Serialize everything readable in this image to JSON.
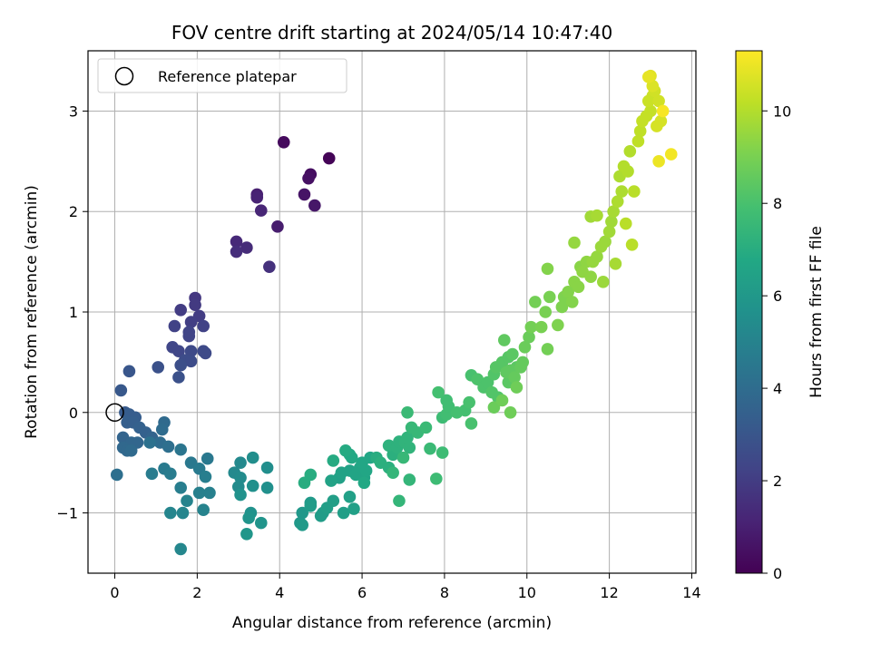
{
  "chart_data": {
    "type": "scatter",
    "title": "FOV centre drift starting at 2024/05/14 10:47:40",
    "xlabel": "Angular distance from reference (arcmin)",
    "ylabel": "Rotation from reference (arcmin)",
    "xlim": [
      -0.65,
      14.1
    ],
    "ylim": [
      -1.6,
      3.6
    ],
    "xticks": [
      0,
      2,
      4,
      6,
      8,
      10,
      12,
      14
    ],
    "yticks": [
      -1,
      0,
      1,
      2,
      3
    ],
    "grid": true,
    "legend": {
      "position": "top-left",
      "entries": [
        "Reference platepar"
      ]
    },
    "reference_point": {
      "x": 0,
      "y": 0
    },
    "colorbar": {
      "label": "Hours from first FF file",
      "colormap": "viridis",
      "range": [
        0,
        11.3
      ],
      "ticks": [
        0,
        2,
        4,
        6,
        8,
        10
      ]
    },
    "series": [
      {
        "marker": "filled-circle",
        "points": [
          [
            5.2,
            2.53,
            0.1
          ],
          [
            4.1,
            2.69,
            0.3
          ],
          [
            4.75,
            2.37,
            0.4
          ],
          [
            4.7,
            2.33,
            0.5
          ],
          [
            4.6,
            2.17,
            0.6
          ],
          [
            4.85,
            2.06,
            0.7
          ],
          [
            3.95,
            1.85,
            0.9
          ],
          [
            3.45,
            2.17,
            1.0
          ],
          [
            3.45,
            2.14,
            1.1
          ],
          [
            3.55,
            2.01,
            1.2
          ],
          [
            2.95,
            1.7,
            1.3
          ],
          [
            3.2,
            1.64,
            1.4
          ],
          [
            2.95,
            1.6,
            1.5
          ],
          [
            3.75,
            1.45,
            1.6
          ],
          [
            1.95,
            1.14,
            1.8
          ],
          [
            1.95,
            1.07,
            1.9
          ],
          [
            1.6,
            1.02,
            2.0
          ],
          [
            2.05,
            0.96,
            2.0
          ],
          [
            1.85,
            0.9,
            2.1
          ],
          [
            2.15,
            0.86,
            2.2
          ],
          [
            1.45,
            0.86,
            2.2
          ],
          [
            1.8,
            0.76,
            2.3
          ],
          [
            1.8,
            0.8,
            2.3
          ],
          [
            1.4,
            0.65,
            2.4
          ],
          [
            1.55,
            0.61,
            2.4
          ],
          [
            1.85,
            0.61,
            2.5
          ],
          [
            2.15,
            0.61,
            2.5
          ],
          [
            2.2,
            0.59,
            2.5
          ],
          [
            1.7,
            0.52,
            2.6
          ],
          [
            1.85,
            0.51,
            2.6
          ],
          [
            1.6,
            0.47,
            2.7
          ],
          [
            1.05,
            0.45,
            2.8
          ],
          [
            1.55,
            0.35,
            2.8
          ],
          [
            0.35,
            0.41,
            3.0
          ],
          [
            0.15,
            0.22,
            3.1
          ],
          [
            0.25,
            0.0,
            3.2
          ],
          [
            0.35,
            -0.02,
            3.3
          ],
          [
            0.5,
            -0.05,
            3.3
          ],
          [
            0.3,
            -0.1,
            3.4
          ],
          [
            0.45,
            -0.1,
            3.4
          ],
          [
            0.6,
            -0.15,
            3.5
          ],
          [
            0.75,
            -0.2,
            3.5
          ],
          [
            0.9,
            -0.25,
            3.6
          ],
          [
            0.2,
            -0.25,
            3.6
          ],
          [
            0.4,
            -0.3,
            3.7
          ],
          [
            0.55,
            -0.3,
            3.7
          ],
          [
            0.2,
            -0.35,
            3.8
          ],
          [
            0.3,
            -0.38,
            3.8
          ],
          [
            0.4,
            -0.38,
            3.9
          ],
          [
            1.2,
            -0.1,
            3.9
          ],
          [
            1.15,
            -0.17,
            4.0
          ],
          [
            1.1,
            -0.3,
            4.0
          ],
          [
            1.3,
            -0.34,
            4.1
          ],
          [
            0.05,
            -0.62,
            4.1
          ],
          [
            0.85,
            -0.3,
            4.2
          ],
          [
            1.6,
            -0.37,
            4.4
          ],
          [
            1.85,
            -0.5,
            4.5
          ],
          [
            2.25,
            -0.46,
            4.5
          ],
          [
            2.05,
            -0.56,
            4.6
          ],
          [
            1.2,
            -0.56,
            4.6
          ],
          [
            0.9,
            -0.61,
            4.7
          ],
          [
            1.35,
            -0.61,
            4.7
          ],
          [
            2.2,
            -0.64,
            4.8
          ],
          [
            1.6,
            -0.75,
            4.8
          ],
          [
            2.05,
            -0.8,
            4.9
          ],
          [
            2.3,
            -0.8,
            4.9
          ],
          [
            1.75,
            -0.88,
            5.0
          ],
          [
            2.15,
            -0.97,
            5.0
          ],
          [
            1.35,
            -1.0,
            5.1
          ],
          [
            1.65,
            -1.0,
            5.1
          ],
          [
            1.6,
            -1.36,
            5.2
          ],
          [
            2.9,
            -0.6,
            5.3
          ],
          [
            3.05,
            -0.5,
            5.3
          ],
          [
            3.05,
            -0.65,
            5.4
          ],
          [
            3.0,
            -0.74,
            5.4
          ],
          [
            3.35,
            -0.45,
            5.5
          ],
          [
            3.7,
            -0.55,
            5.5
          ],
          [
            3.35,
            -0.73,
            5.6
          ],
          [
            3.7,
            -0.75,
            5.6
          ],
          [
            3.05,
            -0.82,
            5.7
          ],
          [
            3.3,
            -1.0,
            5.7
          ],
          [
            3.25,
            -1.05,
            5.8
          ],
          [
            3.55,
            -1.1,
            5.8
          ],
          [
            3.2,
            -1.21,
            5.9
          ],
          [
            4.55,
            -1.0,
            6.0
          ],
          [
            4.5,
            -1.1,
            6.0
          ],
          [
            4.55,
            -1.12,
            6.1
          ],
          [
            4.75,
            -0.9,
            6.1
          ],
          [
            4.75,
            -0.93,
            6.2
          ],
          [
            5.0,
            -1.03,
            6.2
          ],
          [
            5.05,
            -1.0,
            6.2
          ],
          [
            5.15,
            -0.95,
            6.3
          ],
          [
            5.3,
            -0.88,
            6.3
          ],
          [
            5.55,
            -1.0,
            6.3
          ],
          [
            5.8,
            -0.96,
            6.4
          ],
          [
            5.7,
            -0.84,
            6.4
          ],
          [
            5.45,
            -0.65,
            6.4
          ],
          [
            5.25,
            -0.68,
            6.5
          ],
          [
            5.5,
            -0.6,
            6.5
          ],
          [
            5.7,
            -0.58,
            6.5
          ],
          [
            5.85,
            -0.62,
            6.6
          ],
          [
            5.95,
            -0.55,
            6.6
          ],
          [
            6.05,
            -0.65,
            6.6
          ],
          [
            6.1,
            -0.58,
            6.7
          ],
          [
            6.0,
            -0.5,
            6.7
          ],
          [
            6.2,
            -0.45,
            6.7
          ],
          [
            6.05,
            -0.7,
            6.8
          ],
          [
            5.7,
            -0.42,
            6.8
          ],
          [
            5.75,
            -0.45,
            6.8
          ],
          [
            5.6,
            -0.38,
            6.9
          ],
          [
            5.3,
            -0.48,
            6.9
          ],
          [
            4.75,
            -0.62,
            7.0
          ],
          [
            4.6,
            -0.7,
            7.0
          ],
          [
            6.35,
            -0.45,
            7.0
          ],
          [
            6.45,
            -0.5,
            7.1
          ],
          [
            6.65,
            -0.55,
            7.1
          ],
          [
            6.75,
            -0.42,
            7.1
          ],
          [
            6.65,
            -0.33,
            7.2
          ],
          [
            6.85,
            -0.35,
            7.2
          ],
          [
            6.9,
            -0.29,
            7.2
          ],
          [
            7.05,
            -0.3,
            7.3
          ],
          [
            7.15,
            -0.35,
            7.3
          ],
          [
            7.1,
            -0.25,
            7.3
          ],
          [
            6.9,
            -0.88,
            7.4
          ],
          [
            7.15,
            -0.67,
            7.4
          ],
          [
            6.75,
            -0.6,
            7.4
          ],
          [
            7.0,
            -0.45,
            7.5
          ],
          [
            7.2,
            -0.15,
            7.5
          ],
          [
            7.35,
            -0.2,
            7.5
          ],
          [
            7.55,
            -0.15,
            7.6
          ],
          [
            7.65,
            -0.36,
            7.6
          ],
          [
            7.1,
            0.0,
            7.6
          ],
          [
            7.8,
            -0.66,
            7.7
          ],
          [
            7.95,
            -0.4,
            7.7
          ],
          [
            7.95,
            -0.05,
            7.7
          ],
          [
            8.05,
            -0.02,
            7.8
          ],
          [
            8.1,
            0.06,
            7.8
          ],
          [
            8.05,
            0.12,
            7.8
          ],
          [
            7.85,
            0.2,
            7.9
          ],
          [
            8.3,
            0.0,
            7.9
          ],
          [
            8.5,
            0.02,
            7.9
          ],
          [
            8.6,
            0.1,
            8.0
          ],
          [
            8.65,
            -0.11,
            8.0
          ],
          [
            8.65,
            0.37,
            8.0
          ],
          [
            8.8,
            0.33,
            8.1
          ],
          [
            8.95,
            0.25,
            8.1
          ],
          [
            9.05,
            0.3,
            8.1
          ],
          [
            9.15,
            0.2,
            8.2
          ],
          [
            9.3,
            0.15,
            8.2
          ],
          [
            9.2,
            0.38,
            8.2
          ],
          [
            9.25,
            0.45,
            8.3
          ],
          [
            9.4,
            0.5,
            8.3
          ],
          [
            9.55,
            0.55,
            8.3
          ],
          [
            9.65,
            0.58,
            8.4
          ],
          [
            9.75,
            0.45,
            8.4
          ],
          [
            9.55,
            0.3,
            8.4
          ],
          [
            9.45,
            0.72,
            8.5
          ],
          [
            9.5,
            0.4,
            8.5
          ],
          [
            9.6,
            0.42,
            8.5
          ],
          [
            9.7,
            0.35,
            8.6
          ],
          [
            9.85,
            0.45,
            8.6
          ],
          [
            9.9,
            0.5,
            8.6
          ],
          [
            9.95,
            0.65,
            8.7
          ],
          [
            10.05,
            0.75,
            8.7
          ],
          [
            9.2,
            0.05,
            8.7
          ],
          [
            9.4,
            0.12,
            8.8
          ],
          [
            9.6,
            0.0,
            8.8
          ],
          [
            9.75,
            0.25,
            8.8
          ],
          [
            10.1,
            0.85,
            8.9
          ],
          [
            10.2,
            1.1,
            8.9
          ],
          [
            10.5,
            0.63,
            8.9
          ],
          [
            10.35,
            0.85,
            9.0
          ],
          [
            10.45,
            1.0,
            9.0
          ],
          [
            10.55,
            1.15,
            9.0
          ],
          [
            10.75,
            0.87,
            9.1
          ],
          [
            10.85,
            1.05,
            9.1
          ],
          [
            10.9,
            1.15,
            9.1
          ],
          [
            11.0,
            1.2,
            9.2
          ],
          [
            11.1,
            1.1,
            9.2
          ],
          [
            10.5,
            1.43,
            9.2
          ],
          [
            11.15,
            1.3,
            9.3
          ],
          [
            11.25,
            1.25,
            9.3
          ],
          [
            11.3,
            1.45,
            9.3
          ],
          [
            11.35,
            1.4,
            9.4
          ],
          [
            11.45,
            1.5,
            9.4
          ],
          [
            11.55,
            1.35,
            9.4
          ],
          [
            11.6,
            1.5,
            9.5
          ],
          [
            11.15,
            1.69,
            9.5
          ],
          [
            11.7,
            1.55,
            9.5
          ],
          [
            11.8,
            1.65,
            9.6
          ],
          [
            11.85,
            1.3,
            9.6
          ],
          [
            11.9,
            1.7,
            9.6
          ],
          [
            12.0,
            1.8,
            9.7
          ],
          [
            12.05,
            1.9,
            9.7
          ],
          [
            11.55,
            1.95,
            9.7
          ],
          [
            11.7,
            1.96,
            9.8
          ],
          [
            12.1,
            2.0,
            9.8
          ],
          [
            12.15,
            1.48,
            9.8
          ],
          [
            12.2,
            2.1,
            9.9
          ],
          [
            12.3,
            2.2,
            9.9
          ],
          [
            12.25,
            2.35,
            9.9
          ],
          [
            12.35,
            2.45,
            10.0
          ],
          [
            12.45,
            2.4,
            10.0
          ],
          [
            12.5,
            2.6,
            10.0
          ],
          [
            12.4,
            1.88,
            10.1
          ],
          [
            12.55,
            1.67,
            10.1
          ],
          [
            12.6,
            2.2,
            10.1
          ],
          [
            12.7,
            2.7,
            10.2
          ],
          [
            12.75,
            2.8,
            10.2
          ],
          [
            12.8,
            2.9,
            10.3
          ],
          [
            12.9,
            2.95,
            10.3
          ],
          [
            13.0,
            3.0,
            10.3
          ],
          [
            12.95,
            3.1,
            10.4
          ],
          [
            13.05,
            3.15,
            10.4
          ],
          [
            13.1,
            3.2,
            10.5
          ],
          [
            13.2,
            3.1,
            10.5
          ],
          [
            13.25,
            2.9,
            10.6
          ],
          [
            13.15,
            2.85,
            10.6
          ],
          [
            13.05,
            3.25,
            10.7
          ],
          [
            13.0,
            3.35,
            10.8
          ],
          [
            12.95,
            3.34,
            10.9
          ],
          [
            13.2,
            2.5,
            11.0
          ],
          [
            13.5,
            2.57,
            11.1
          ],
          [
            13.3,
            3.0,
            11.2
          ]
        ]
      }
    ]
  }
}
